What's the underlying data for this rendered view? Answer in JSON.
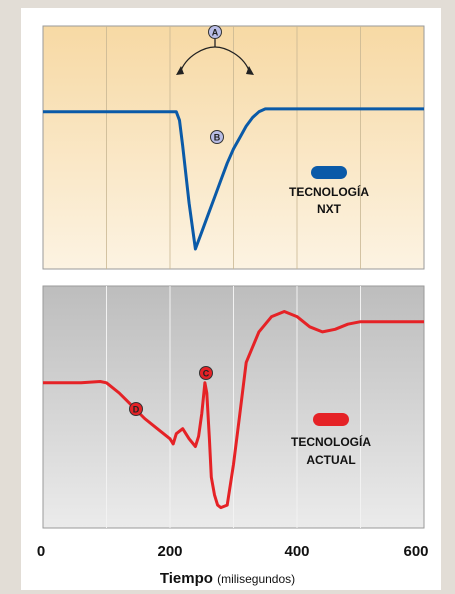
{
  "chart_data": [
    {
      "type": "line",
      "panel": "top",
      "xlim": [
        0,
        600
      ],
      "series": [
        {
          "name": "TECNOLOGÍA NXT",
          "color": "#0a5aa8",
          "x": [
            0,
            30,
            60,
            100,
            150,
            200,
            210,
            215,
            220,
            230,
            240,
            250,
            260,
            270,
            280,
            290,
            300,
            310,
            320,
            330,
            340,
            350,
            400,
            450,
            500,
            550,
            600
          ],
          "y": [
            50,
            50,
            50,
            50,
            50,
            50,
            50,
            47,
            38,
            18,
            2,
            8,
            14,
            20,
            26,
            32,
            37,
            41,
            45,
            48,
            50,
            51,
            51,
            51,
            51,
            51,
            51
          ]
        }
      ],
      "ylim": [
        -5,
        80
      ],
      "legend": [
        "TECNOLOGÍA",
        "NXT"
      ],
      "annotations": [
        "A",
        "B"
      ]
    },
    {
      "type": "line",
      "panel": "bottom",
      "xlim": [
        0,
        600
      ],
      "series": [
        {
          "name": "TECNOLOGÍA ACTUAL",
          "color": "#e52226",
          "x": [
            0,
            30,
            60,
            90,
            100,
            120,
            140,
            160,
            180,
            200,
            205,
            210,
            220,
            230,
            240,
            245,
            250,
            255,
            258,
            262,
            265,
            270,
            275,
            280,
            290,
            300,
            310,
            320,
            340,
            360,
            380,
            400,
            420,
            440,
            460,
            480,
            500,
            520,
            550,
            600
          ],
          "y": [
            42,
            42,
            42,
            42.5,
            42,
            38,
            33,
            28,
            24,
            20,
            18,
            22,
            24,
            20,
            17,
            21,
            30,
            42,
            38,
            20,
            5,
            -2,
            -6,
            -7,
            -6,
            10,
            30,
            50,
            62,
            68,
            70,
            68,
            64,
            62,
            63,
            65,
            66,
            66,
            66,
            66
          ]
        }
      ],
      "ylim": [
        -15,
        80
      ],
      "legend": [
        "TECNOLOGÍA",
        "ACTUAL"
      ],
      "annotations": [
        "C",
        "D"
      ]
    }
  ],
  "x_axis": {
    "ticks": [
      "0",
      "200",
      "400",
      "600"
    ],
    "title": "Tiempo",
    "unit": "(milisegundos)"
  },
  "colors": {
    "top_panel_top": "#f7d9a4",
    "top_panel_bottom": "#fcf3e2",
    "bottom_panel_top": "#bfbfbf",
    "bottom_panel_bottom": "#e8e8e8",
    "nxt": "#0a5aa8",
    "actual": "#e52226"
  }
}
